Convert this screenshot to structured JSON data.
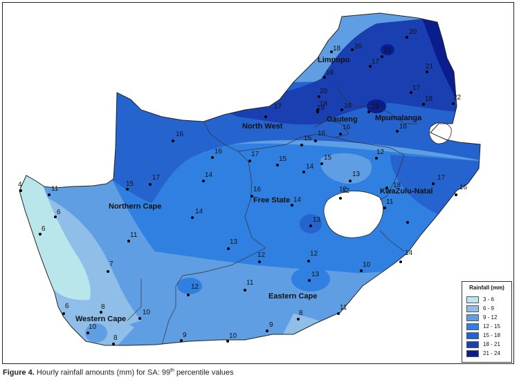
{
  "caption": {
    "figure": "Figure 4.",
    "text": "Hourly rainfall amounts (mm) for SA: 99",
    "sup": "th",
    "text_end": " percentile values"
  },
  "legend": {
    "title": "Rainfall (mm)",
    "classes": [
      {
        "range": "3 - 6",
        "color": "#b9e6ea"
      },
      {
        "range": "6 - 9",
        "color": "#8fbfe8"
      },
      {
        "range": "9 - 12",
        "color": "#5f9ee3"
      },
      {
        "range": "12 - 15",
        "color": "#2f80e0"
      },
      {
        "range": "15 - 18",
        "color": "#2563cf"
      },
      {
        "range": "18 - 21",
        "color": "#1a3fb0"
      },
      {
        "range": "21 - 24",
        "color": "#0a1d8c"
      }
    ]
  },
  "provinces": [
    "Limpopo",
    "North West",
    "Gauteng",
    "Mpumalanga",
    "Northern Cape",
    "Free State",
    "KwaZulu-Natal",
    "Eastern Cape",
    "Western Cape"
  ],
  "stations": [
    "4",
    "11",
    "6",
    "6",
    "7",
    "6",
    "8",
    "10",
    "8",
    "10",
    "9",
    "10",
    "9",
    "8",
    "11",
    "12",
    "11",
    "12",
    "13",
    "12",
    "10",
    "13",
    "14",
    "11",
    "15",
    "14",
    "17",
    "13",
    "12",
    "16",
    "14",
    "14",
    "15",
    "17",
    "16",
    "16",
    "17",
    "15",
    "16",
    "15",
    "16",
    "20",
    "18",
    "19",
    "18",
    "20",
    "18",
    "17",
    "21",
    "20",
    "21",
    "19",
    "18",
    "17",
    "18",
    "22",
    "16",
    "13",
    "12",
    "12",
    "14",
    "18",
    "17",
    "16",
    "11"
  ]
}
